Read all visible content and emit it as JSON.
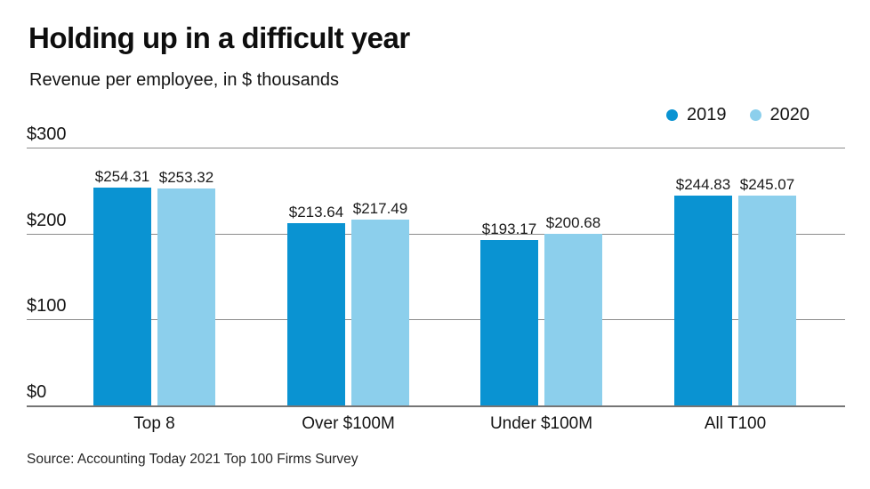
{
  "header": {
    "title": "Holding up in a difficult year",
    "subtitle": "Revenue per employee, in $ thousands"
  },
  "source": "Source: Accounting Today 2021 Top 100 Firms Survey",
  "colors": {
    "series_2019": "#0a93d2",
    "series_2020": "#8ccfec",
    "gridline": "#8c8c8c",
    "axis_line": "#757575",
    "text": "#141414"
  },
  "chart_data": {
    "type": "bar",
    "title": "Holding up in a difficult year",
    "subtitle": "Revenue per employee, in $ thousands",
    "categories": [
      "Top 8",
      "Over $100M",
      "Under $100M",
      "All T100"
    ],
    "series": [
      {
        "name": "2019",
        "color": "#0a93d2",
        "values": [
          254.31,
          213.64,
          193.17,
          244.83
        ]
      },
      {
        "name": "2020",
        "color": "#8ccfec",
        "values": [
          253.32,
          217.49,
          200.68,
          245.07
        ]
      }
    ],
    "data_label_format": "$0.00",
    "xlabel": "",
    "ylabel": "Revenue per employee, in $ thousands",
    "ylim": [
      0,
      300
    ],
    "yticks": [
      0,
      100,
      200,
      300
    ],
    "ytick_labels": [
      "$0",
      "$100",
      "$200",
      "$300"
    ],
    "grid": true,
    "legend_position": "top-right",
    "source": "Source: Accounting Today 2021 Top 100 Firms Survey"
  }
}
